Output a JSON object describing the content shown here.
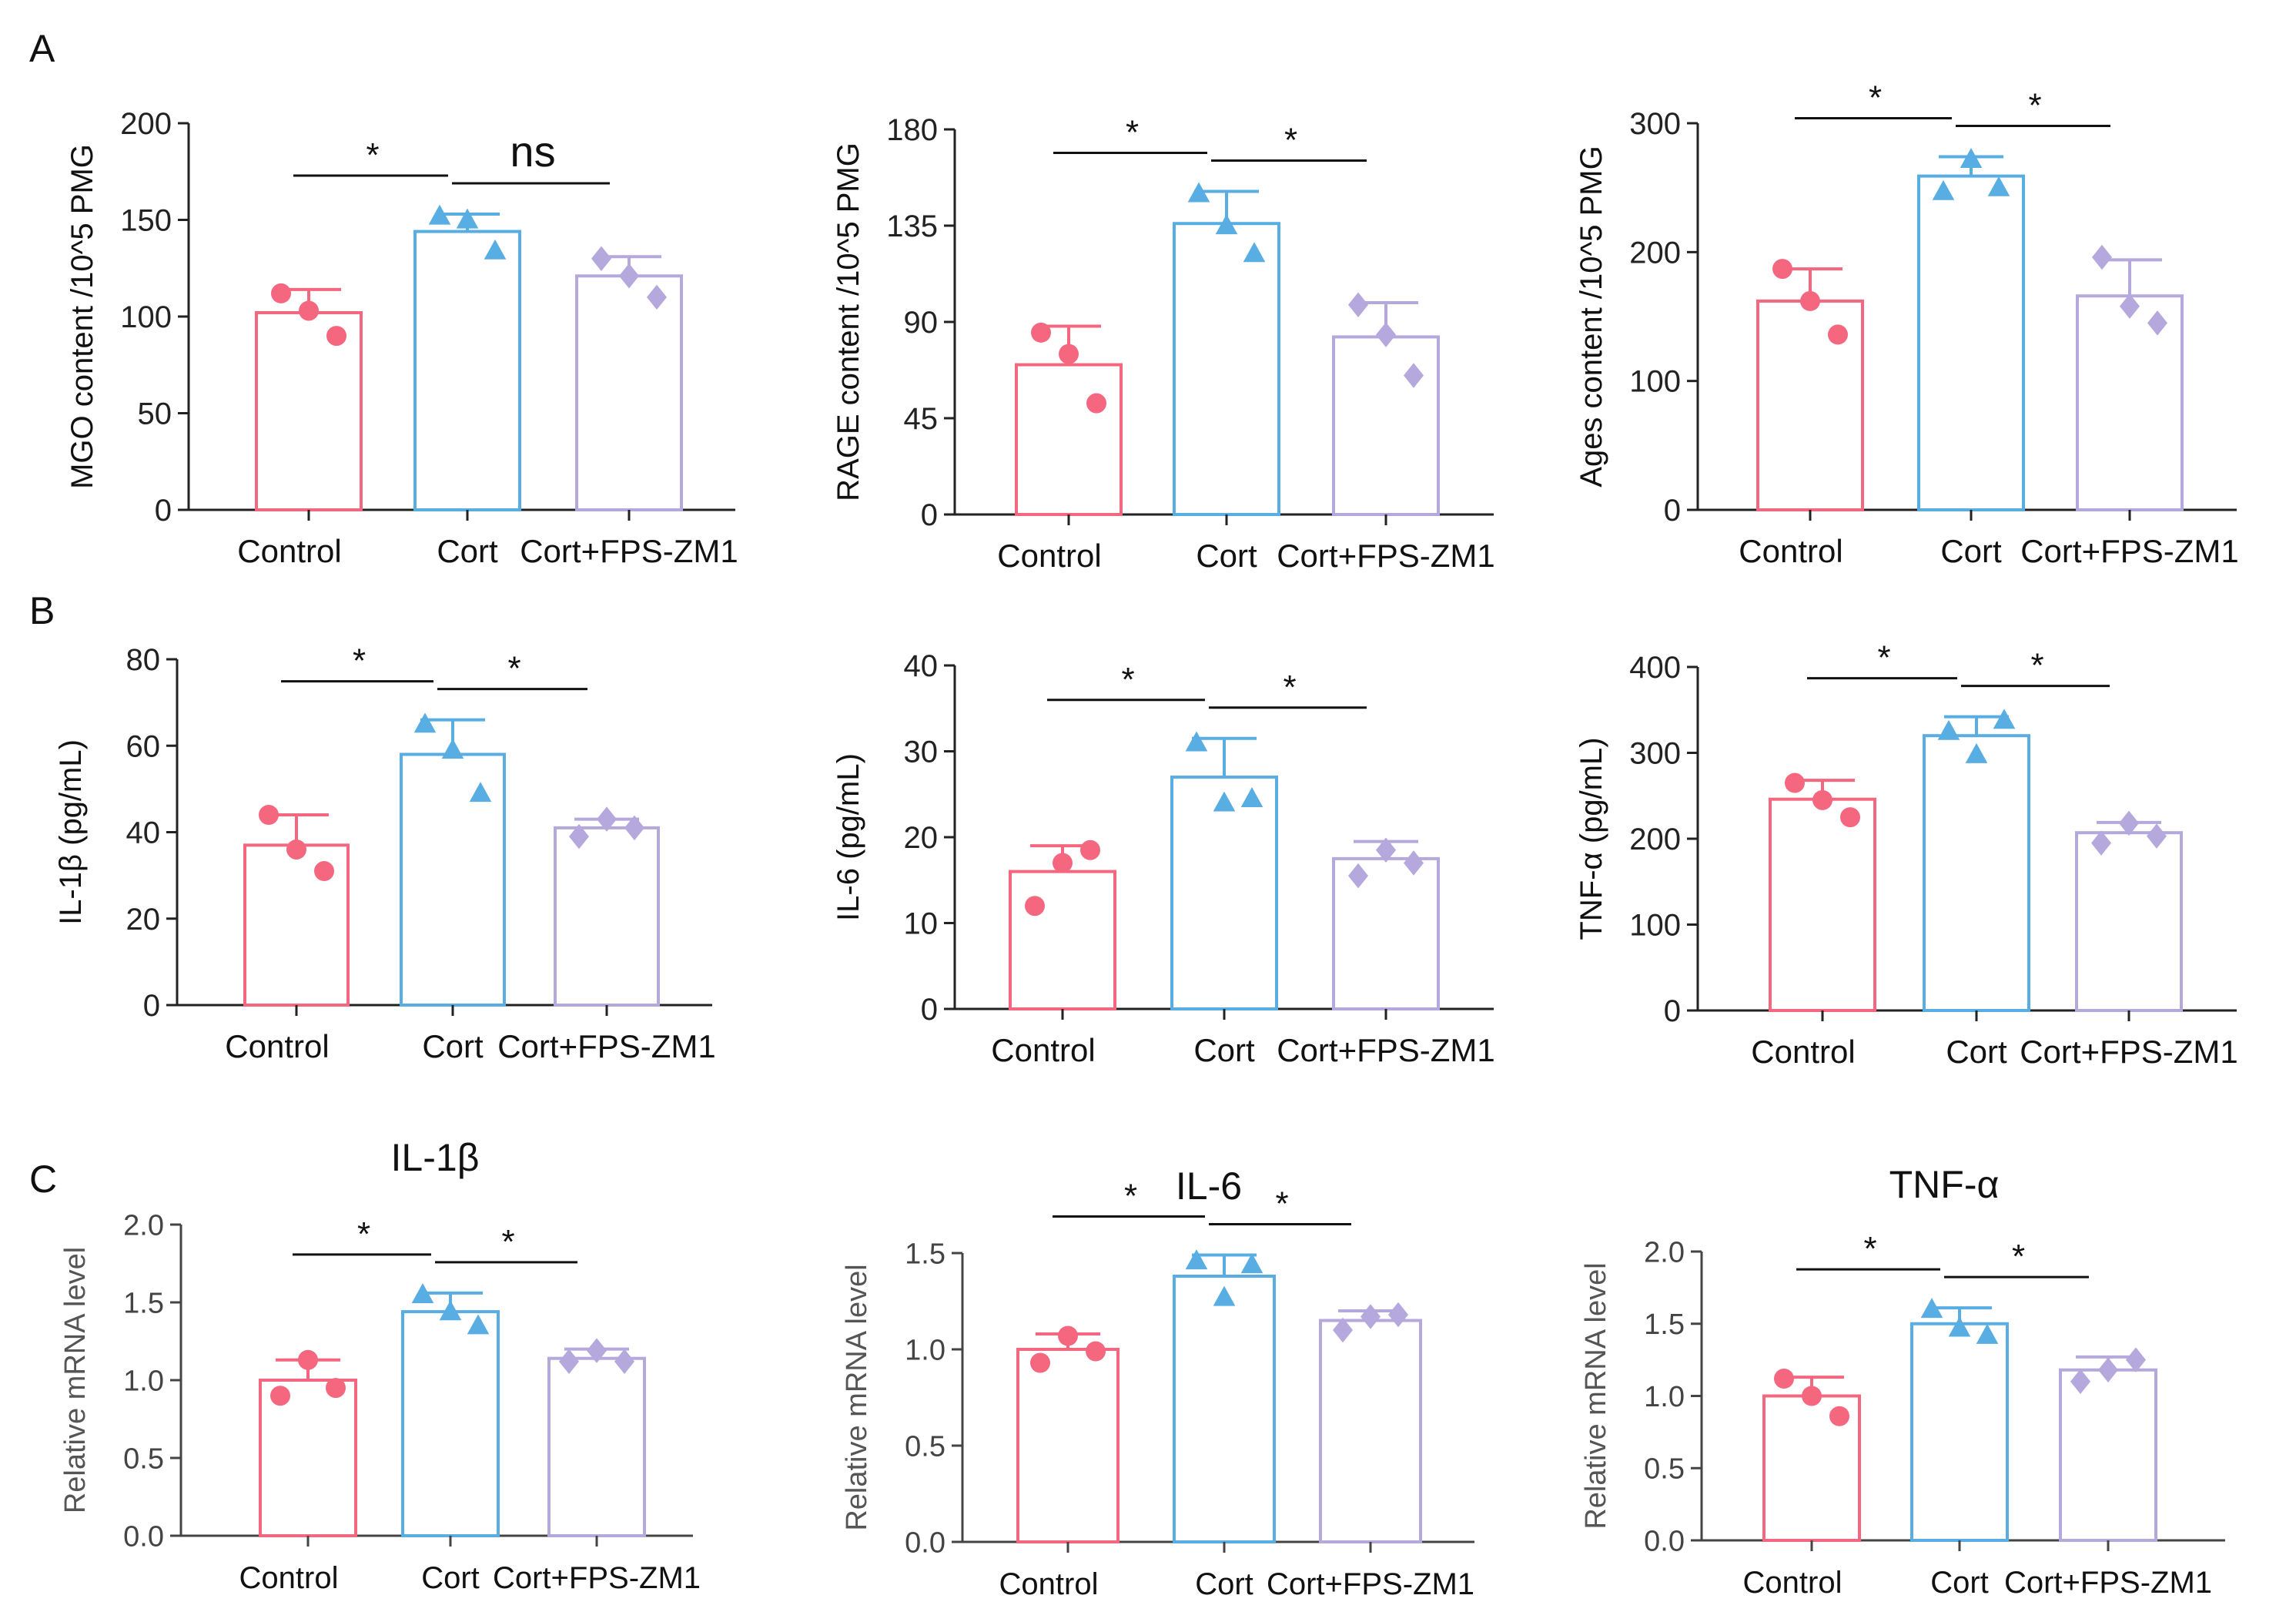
{
  "figure": {
    "panel_labels": [
      "A",
      "B",
      "C"
    ],
    "groups": [
      "Control",
      "Cort",
      "Cort+FPS-ZM1"
    ],
    "colors": {
      "control": "#f4677f",
      "cort": "#58ade3",
      "fps": "#b5a8dc",
      "axis": "#222222",
      "mrna_axis": "#444444"
    },
    "markers": [
      "circle",
      "triangle",
      "diamond"
    ]
  },
  "chart_data": [
    {
      "type": "bar",
      "panel": "A",
      "title": "",
      "ylabel": "MGO content /10^5 PMG",
      "ylim": [
        0,
        200
      ],
      "yticks": [
        0,
        50,
        100,
        150,
        200
      ],
      "categories": [
        "Control",
        "Cort",
        "Cort+FPS-ZM1"
      ],
      "values": [
        102,
        144,
        121
      ],
      "errors": [
        12,
        9,
        10
      ],
      "points": [
        [
          112,
          103,
          90
        ],
        [
          152,
          150,
          134
        ],
        [
          130,
          121,
          110
        ]
      ],
      "sig": [
        {
          "from": 0,
          "to": 1,
          "label": "*"
        },
        {
          "from": 1,
          "to": 2,
          "label": "ns"
        }
      ]
    },
    {
      "type": "bar",
      "panel": "A",
      "title": "",
      "ylabel": "RAGE content /10^5 PMG",
      "ylim": [
        0,
        180
      ],
      "yticks": [
        0,
        45,
        90,
        135,
        180
      ],
      "categories": [
        "Control",
        "Cort",
        "Cort+FPS-ZM1"
      ],
      "values": [
        70,
        136,
        83
      ],
      "errors": [
        18,
        15,
        16
      ],
      "points": [
        [
          85,
          75,
          52
        ],
        [
          150,
          135,
          122
        ],
        [
          98,
          84,
          65
        ]
      ],
      "sig": [
        {
          "from": 0,
          "to": 1,
          "label": "*"
        },
        {
          "from": 1,
          "to": 2,
          "label": "*"
        }
      ]
    },
    {
      "type": "bar",
      "panel": "A",
      "title": "",
      "ylabel": "Ages content /10^5 PMG",
      "ylim": [
        0,
        300
      ],
      "yticks": [
        0,
        100,
        200,
        300
      ],
      "categories": [
        "Control",
        "Cort",
        "Cort+FPS-ZM1"
      ],
      "values": [
        162,
        259,
        166
      ],
      "errors": [
        25,
        15,
        28
      ],
      "points": [
        [
          187,
          162,
          136
        ],
        [
          247,
          272,
          250
        ],
        [
          196,
          158,
          145
        ]
      ],
      "sig": [
        {
          "from": 0,
          "to": 1,
          "label": "*"
        },
        {
          "from": 1,
          "to": 2,
          "label": "*"
        }
      ]
    },
    {
      "type": "bar",
      "panel": "B",
      "title": "",
      "ylabel": "IL-1β (pg/mL)",
      "ylim": [
        0,
        80
      ],
      "yticks": [
        0,
        20,
        40,
        60,
        80
      ],
      "categories": [
        "Control",
        "Cort",
        "Cort+FPS-ZM1"
      ],
      "values": [
        37,
        58,
        41
      ],
      "errors": [
        7,
        8,
        2
      ],
      "points": [
        [
          44,
          36,
          31
        ],
        [
          65,
          59,
          49
        ],
        [
          39,
          43,
          41
        ]
      ],
      "sig": [
        {
          "from": 0,
          "to": 1,
          "label": "*"
        },
        {
          "from": 1,
          "to": 2,
          "label": "*"
        }
      ]
    },
    {
      "type": "bar",
      "panel": "B",
      "title": "",
      "ylabel": "IL-6 (pg/mL)",
      "ylim": [
        0,
        40
      ],
      "yticks": [
        0,
        10,
        20,
        30,
        40
      ],
      "categories": [
        "Control",
        "Cort",
        "Cort+FPS-ZM1"
      ],
      "values": [
        16,
        27,
        17.5
      ],
      "errors": [
        3,
        4.5,
        2
      ],
      "points": [
        [
          12,
          17,
          18.5
        ],
        [
          31,
          24,
          24.5
        ],
        [
          15.5,
          18.5,
          17
        ]
      ],
      "sig": [
        {
          "from": 0,
          "to": 1,
          "label": "*"
        },
        {
          "from": 1,
          "to": 2,
          "label": "*"
        }
      ]
    },
    {
      "type": "bar",
      "panel": "B",
      "title": "",
      "ylabel": "TNF-α  (pg/mL)",
      "ylim": [
        0,
        400
      ],
      "yticks": [
        0,
        100,
        200,
        300,
        400
      ],
      "categories": [
        "Control",
        "Cort",
        "Cort+FPS-ZM1"
      ],
      "values": [
        246,
        320,
        207
      ],
      "errors": [
        22,
        22,
        12
      ],
      "points": [
        [
          265,
          245,
          225
        ],
        [
          325,
          298,
          338
        ],
        [
          195,
          218,
          203
        ]
      ],
      "sig": [
        {
          "from": 0,
          "to": 1,
          "label": "*"
        },
        {
          "from": 1,
          "to": 2,
          "label": "*"
        }
      ]
    },
    {
      "type": "bar",
      "panel": "C",
      "title": "IL-1β",
      "ylabel": "Relative mRNA level",
      "ylim": [
        0,
        2
      ],
      "yticks": [
        "0.0",
        "0.5",
        "1.0",
        "1.5",
        "2.0"
      ],
      "categories": [
        "Control",
        "Cort",
        "Cort+FPS-ZM1"
      ],
      "values": [
        1.0,
        1.44,
        1.14
      ],
      "errors": [
        0.13,
        0.12,
        0.06
      ],
      "points": [
        [
          0.9,
          1.13,
          0.95
        ],
        [
          1.55,
          1.44,
          1.35
        ],
        [
          1.12,
          1.19,
          1.12
        ]
      ],
      "sig": [
        {
          "from": 0,
          "to": 1,
          "label": "*"
        },
        {
          "from": 1,
          "to": 2,
          "label": "*"
        }
      ]
    },
    {
      "type": "bar",
      "panel": "C",
      "title": "IL-6",
      "ylabel": "Relative mRNA level",
      "ylim": [
        0,
        1.5
      ],
      "yticks": [
        "0.0",
        "0.5",
        "1.0",
        "1.5"
      ],
      "categories": [
        "Control",
        "Cort",
        "Cort+FPS-ZM1"
      ],
      "values": [
        1.0,
        1.38,
        1.15
      ],
      "errors": [
        0.08,
        0.11,
        0.05
      ],
      "points": [
        [
          0.93,
          1.07,
          0.99
        ],
        [
          1.46,
          1.27,
          1.44
        ],
        [
          1.1,
          1.17,
          1.18
        ]
      ],
      "sig": [
        {
          "from": 0,
          "to": 1,
          "label": "*"
        },
        {
          "from": 1,
          "to": 2,
          "label": "*"
        }
      ]
    },
    {
      "type": "bar",
      "panel": "C",
      "title": "TNF-α",
      "ylabel": "Relative mRNA level",
      "ylim": [
        0,
        2
      ],
      "yticks": [
        "0.0",
        "0.5",
        "1.0",
        "1.5",
        "2.0"
      ],
      "categories": [
        "Control",
        "Cort",
        "Cort+FPS-ZM1"
      ],
      "values": [
        1.0,
        1.5,
        1.18
      ],
      "errors": [
        0.13,
        0.11,
        0.09
      ],
      "points": [
        [
          1.12,
          1.0,
          0.86
        ],
        [
          1.6,
          1.47,
          1.42
        ],
        [
          1.1,
          1.18,
          1.25
        ]
      ],
      "sig": [
        {
          "from": 0,
          "to": 1,
          "label": "*"
        },
        {
          "from": 1,
          "to": 2,
          "label": "*"
        }
      ]
    }
  ]
}
